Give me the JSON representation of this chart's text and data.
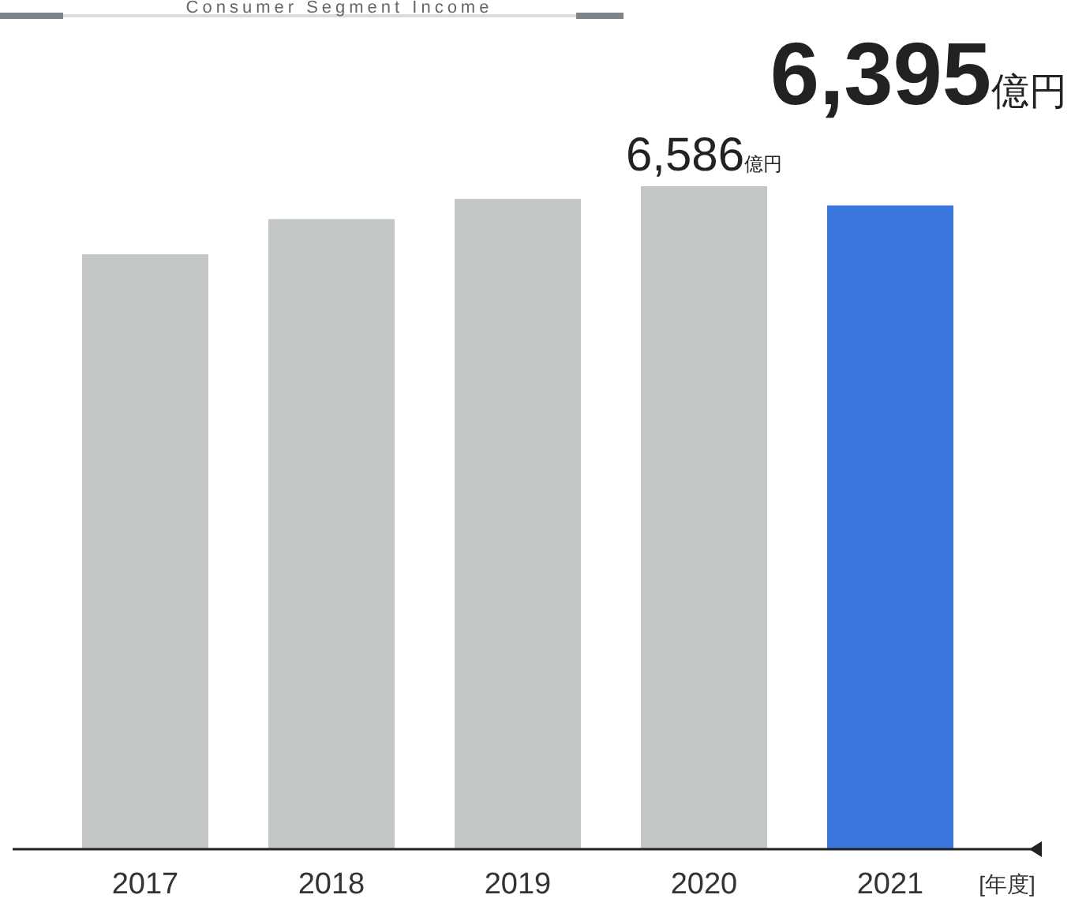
{
  "chart_data": {
    "type": "bar",
    "title": "Consumer Segment Income",
    "xlabel": "[年度]",
    "categories": [
      "2017",
      "2018",
      "2019",
      "2020",
      "2021"
    ],
    "values": [
      5910,
      6260,
      6460,
      6586,
      6395
    ],
    "colors": [
      "#c3c6c6",
      "#c3c6c6",
      "#c3c6c6",
      "#c3c6c6",
      "#3a78e0"
    ],
    "value_labels": [
      null,
      null,
      null,
      "6,586億円",
      "6,395億円"
    ]
  }
}
